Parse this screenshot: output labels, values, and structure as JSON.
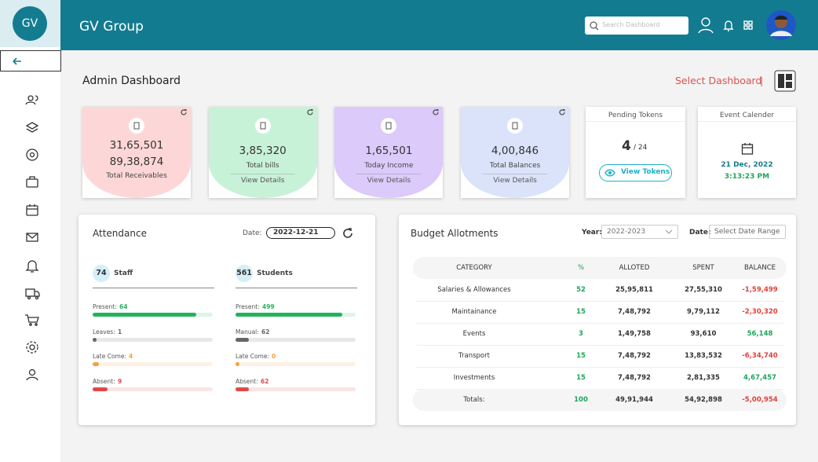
{
  "brand": {
    "logo": "GV",
    "name": "GV Group"
  },
  "header": {
    "search_placeholder": "Search Dashboard"
  },
  "page": {
    "title": "Admin Dashboard",
    "select_dashboard": "Select Dashboard",
    "separator": "|"
  },
  "cards": [
    {
      "values": [
        "31,65,501",
        "89,38,874"
      ],
      "label": "Total Receivables",
      "color": "#fdd7d7"
    },
    {
      "values": [
        "3,85,320"
      ],
      "label": "Total bills",
      "link": "View Details",
      "color": "#c8f2d8"
    },
    {
      "values": [
        "1,65,501"
      ],
      "label": "Today Income",
      "link": "View Details",
      "color": "#dccafb"
    },
    {
      "values": [
        "4,00,846"
      ],
      "label": "Total Balances",
      "link": "View Details",
      "color": "#dbe3fb"
    }
  ],
  "pending_tokens": {
    "title": "Pending Tokens",
    "count": "4",
    "of": "/ 24",
    "button": "View Tokens"
  },
  "event": {
    "title": "Event Calender",
    "date": "21 Dec, 2022",
    "time": "3:13:23 PM"
  },
  "attendance": {
    "title": "Attendance",
    "date_label": "Date:",
    "date": "2022-12-21",
    "groups": [
      {
        "count": 74,
        "label": "Staff",
        "stats": [
          {
            "label": "Present:",
            "value": 64,
            "color": "#22b35e"
          },
          {
            "label": "Leaves:",
            "value": 1,
            "color": "#666666"
          },
          {
            "label": "Late Come:",
            "value": 4,
            "color": "#f5a142"
          },
          {
            "label": "Absent:",
            "value": 9,
            "color": "#e04848"
          }
        ]
      },
      {
        "count": 561,
        "label": "Students",
        "stats": [
          {
            "label": "Present:",
            "value": 499,
            "color": "#22b35e"
          },
          {
            "label": "Manual:",
            "value": 62,
            "color": "#666666"
          },
          {
            "label": "Late Come:",
            "value": 0,
            "color": "#f5a142"
          },
          {
            "label": "Absent:",
            "value": 62,
            "color": "#e04848"
          }
        ]
      }
    ]
  },
  "budget": {
    "title": "Budget Allotments",
    "year_label": "Year:",
    "year": "2022-2023",
    "date_label": "Date:",
    "date_placeholder": "Select Date Range",
    "columns": [
      "CATEGORY",
      "%",
      "ALLOTED",
      "SPENT",
      "BALANCE"
    ],
    "rows": [
      [
        "Salaries & Allowances",
        "52",
        "25,95,811",
        "27,55,310",
        "-1,59,499"
      ],
      [
        "Maintainance",
        "15",
        "7,48,792",
        "9,79,112",
        "-2,30,320"
      ],
      [
        "Events",
        "3",
        "1,49,758",
        "93,610",
        "56,148"
      ],
      [
        "Transport",
        "15",
        "7,48,792",
        "13,83,532",
        "-6,34,740"
      ],
      [
        "Investments",
        "15",
        "7,48,792",
        "2,81,335",
        "4,67,457"
      ]
    ],
    "totals": [
      "Totals:",
      "100",
      "49,91,944",
      "54,92,898",
      "-5,00,954"
    ]
  }
}
